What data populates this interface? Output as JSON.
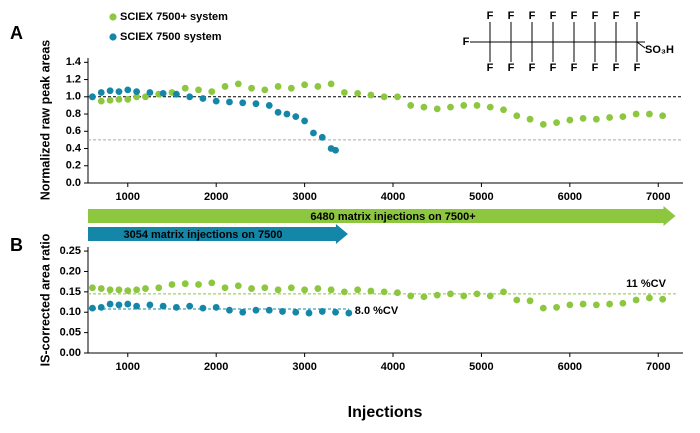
{
  "chart_data": [
    {
      "type": "scatter",
      "panel_label": "A",
      "y_label": "Normalized raw peak areas",
      "xlim": [
        550,
        7280
      ],
      "xticks": [
        1000,
        2000,
        3000,
        4000,
        5000,
        6000,
        7000
      ],
      "ylim": [
        0,
        1.45
      ],
      "yticks": [
        {
          "value": 0,
          "label": "0.0"
        },
        0.2,
        0.4,
        0.6,
        0.8,
        {
          "value": 1,
          "label": "1.0"
        },
        1.2,
        1.4
      ],
      "legend": "upper left",
      "series": [
        {
          "name": "SCIEX 7500+ system",
          "color": "#8dc63f",
          "x": [
            600,
            700,
            800,
            900,
            1000,
            1100,
            1200,
            1350,
            1500,
            1650,
            1800,
            1950,
            2100,
            2250,
            2400,
            2550,
            2700,
            2850,
            3000,
            3150,
            3300,
            3450,
            3600,
            3750,
            3900,
            4050,
            4200,
            4350,
            4500,
            4650,
            4800,
            4950,
            5100,
            5250,
            5400,
            5550,
            5700,
            5850,
            6000,
            6150,
            6300,
            6450,
            6600,
            6750,
            6900,
            7050
          ],
          "values": [
            1.0,
            0.95,
            0.96,
            0.97,
            0.97,
            1.0,
            1.0,
            1.03,
            1.05,
            1.1,
            1.08,
            1.06,
            1.12,
            1.15,
            1.1,
            1.08,
            1.12,
            1.1,
            1.14,
            1.12,
            1.15,
            1.05,
            1.04,
            1.02,
            1.0,
            1.0,
            0.9,
            0.88,
            0.86,
            0.88,
            0.9,
            0.9,
            0.88,
            0.85,
            0.78,
            0.74,
            0.68,
            0.7,
            0.73,
            0.75,
            0.74,
            0.76,
            0.77,
            0.8,
            0.8,
            0.78
          ]
        },
        {
          "name": "SCIEX 7500 system",
          "color": "#1487a9",
          "x": [
            600,
            700,
            800,
            900,
            1000,
            1100,
            1250,
            1400,
            1550,
            1700,
            1850,
            2000,
            2150,
            2300,
            2450,
            2600,
            2700,
            2800,
            2900,
            3000,
            3100,
            3200,
            3300,
            3350
          ],
          "values": [
            1.0,
            1.05,
            1.07,
            1.06,
            1.08,
            1.06,
            1.05,
            1.04,
            1.03,
            1.0,
            0.98,
            0.95,
            0.94,
            0.93,
            0.92,
            0.9,
            0.82,
            0.8,
            0.77,
            0.72,
            0.58,
            0.53,
            0.4,
            0.38
          ]
        }
      ],
      "reference_lines": [
        {
          "y": 1,
          "color": "#000000"
        },
        {
          "y": 0.5,
          "color": "#aaaaaa"
        }
      ],
      "arrows": [
        {
          "label": "6480 matrix injections on 7500+",
          "start": 550,
          "end": 7195,
          "color": "#8dc63f"
        },
        {
          "label": "3054 matrix injections on 7500",
          "start": 550,
          "end": 3490,
          "color": "#1487a9"
        }
      ],
      "structure": {
        "atom": "F",
        "group": "SO₃H"
      }
    },
    {
      "type": "scatter",
      "panel_label": "B",
      "y_label": "IS-corrected area ratio",
      "x_label": "Injections",
      "xlim": [
        550,
        7280
      ],
      "xticks": [
        1000,
        2000,
        3000,
        4000,
        5000,
        6000,
        7000
      ],
      "ylim": [
        0,
        0.26
      ],
      "yticks": [
        {
          "value": 0,
          "label": "0.00"
        },
        {
          "value": 0.05,
          "label": "0.05"
        },
        {
          "value": 0.1,
          "label": "0.10"
        },
        {
          "value": 0.15,
          "label": "0.15"
        },
        {
          "value": 0.2,
          "label": "0.20"
        },
        {
          "value": 0.25,
          "label": "0.25"
        }
      ],
      "series": [
        {
          "color": "#8dc63f",
          "x": [
            600,
            700,
            800,
            900,
            1000,
            1100,
            1200,
            1350,
            1500,
            1650,
            1800,
            1950,
            2100,
            2250,
            2400,
            2550,
            2700,
            2850,
            3000,
            3150,
            3300,
            3450,
            3600,
            3750,
            3900,
            4050,
            4200,
            4350,
            4500,
            4650,
            4800,
            4950,
            5100,
            5250,
            5400,
            5550,
            5700,
            5850,
            6000,
            6150,
            6300,
            6450,
            6600,
            6750,
            6900,
            7050
          ],
          "values": [
            0.16,
            0.158,
            0.155,
            0.155,
            0.153,
            0.155,
            0.158,
            0.16,
            0.168,
            0.17,
            0.168,
            0.172,
            0.16,
            0.165,
            0.158,
            0.16,
            0.155,
            0.16,
            0.155,
            0.158,
            0.155,
            0.15,
            0.155,
            0.152,
            0.15,
            0.148,
            0.14,
            0.138,
            0.142,
            0.145,
            0.14,
            0.145,
            0.14,
            0.15,
            0.13,
            0.128,
            0.11,
            0.112,
            0.118,
            0.12,
            0.118,
            0.12,
            0.122,
            0.13,
            0.135,
            0.132
          ]
        },
        {
          "color": "#1487a9",
          "x": [
            600,
            700,
            800,
            900,
            1000,
            1100,
            1250,
            1400,
            1550,
            1700,
            1850,
            2000,
            2150,
            2300,
            2450,
            2600,
            2750,
            2900,
            3050,
            3200,
            3350,
            3500
          ],
          "values": [
            0.11,
            0.112,
            0.12,
            0.118,
            0.12,
            0.115,
            0.118,
            0.115,
            0.112,
            0.115,
            0.11,
            0.112,
            0.105,
            0.1,
            0.105,
            0.105,
            0.102,
            0.1,
            0.098,
            0.102,
            0.1,
            0.098
          ]
        }
      ],
      "reference_lines": [
        {
          "y": 0.145,
          "x_end": 7200,
          "label": "11 %CV",
          "color": "#8dc63f"
        },
        {
          "y": 0.108,
          "x_end": 3500,
          "label": "8.0 %CV",
          "color": "#1487a9"
        }
      ]
    }
  ]
}
